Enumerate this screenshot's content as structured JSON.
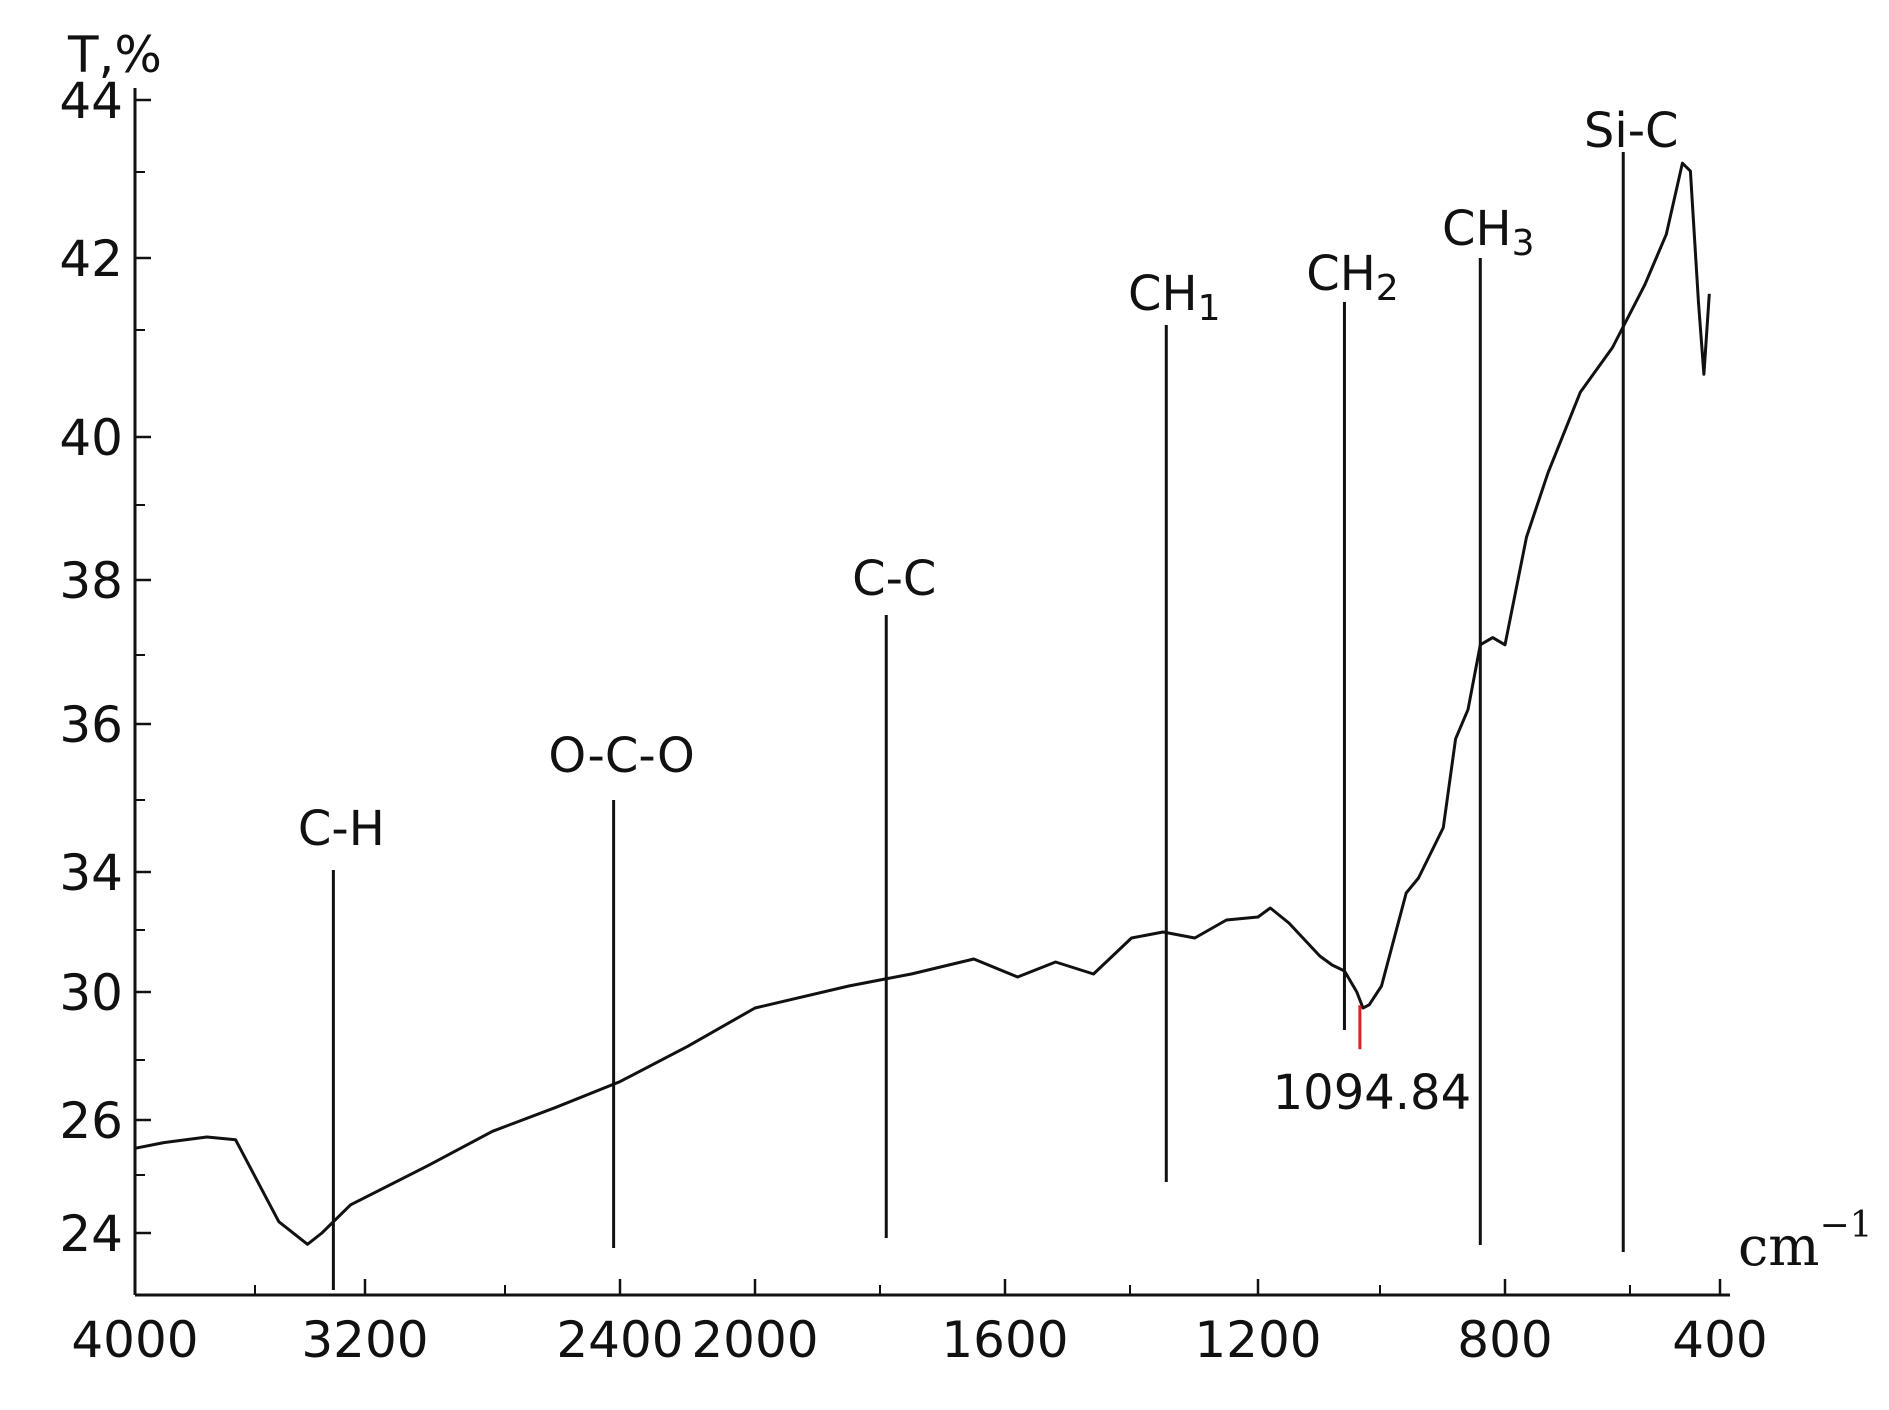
{
  "chart_data": {
    "type": "line",
    "ylabel": "T,%",
    "xlabel": "cm",
    "xlabel_sup": "−1",
    "x_ticks": [
      {
        "value": 4000,
        "label": "4000"
      },
      {
        "value": 3200,
        "label": "3200"
      },
      {
        "value": 2400,
        "label": "2400"
      },
      {
        "value": 2000,
        "label": "2000"
      },
      {
        "value": 1600,
        "label": "1600"
      },
      {
        "value": 1200,
        "label": "1200"
      },
      {
        "value": 800,
        "label": "800"
      },
      {
        "value": 400,
        "label": "400"
      }
    ],
    "y_ticks": [
      {
        "value": 24,
        "label": "24"
      },
      {
        "value": 26,
        "label": "26"
      },
      {
        "value": 30,
        "label": "30"
      },
      {
        "value": 34,
        "label": "34"
      },
      {
        "value": 36,
        "label": "36"
      },
      {
        "value": 38,
        "label": "38"
      },
      {
        "value": 40,
        "label": "40"
      },
      {
        "value": 42,
        "label": "42"
      },
      {
        "value": 44,
        "label": "44"
      }
    ],
    "series": [
      {
        "points": [
          [
            4000,
            25.5
          ],
          [
            3900,
            25.6
          ],
          [
            3750,
            25.7
          ],
          [
            3650,
            25.65
          ],
          [
            3500,
            24.2
          ],
          [
            3400,
            23.8
          ],
          [
            3350,
            24.0
          ],
          [
            3250,
            24.5
          ],
          [
            3000,
            25.2
          ],
          [
            2800,
            25.8
          ],
          [
            2600,
            26.4
          ],
          [
            2400,
            27.2
          ],
          [
            2200,
            28.3
          ],
          [
            2000,
            29.5
          ],
          [
            1850,
            30.2
          ],
          [
            1750,
            30.6
          ],
          [
            1650,
            31.1
          ],
          [
            1580,
            30.5
          ],
          [
            1520,
            31.0
          ],
          [
            1460,
            30.6
          ],
          [
            1400,
            31.8
          ],
          [
            1350,
            32.0
          ],
          [
            1300,
            31.8
          ],
          [
            1250,
            32.4
          ],
          [
            1200,
            32.5
          ],
          [
            1180,
            32.8
          ],
          [
            1150,
            32.3
          ],
          [
            1100,
            31.2
          ],
          [
            1080,
            30.9
          ],
          [
            1060,
            30.7
          ],
          [
            1040,
            30.0
          ],
          [
            1030,
            29.5
          ],
          [
            1020,
            29.6
          ],
          [
            1000,
            30.2
          ],
          [
            960,
            33.3
          ],
          [
            940,
            33.8
          ],
          [
            900,
            34.6
          ],
          [
            880,
            35.8
          ],
          [
            860,
            36.2
          ],
          [
            840,
            37.1
          ],
          [
            820,
            37.2
          ],
          [
            800,
            37.1
          ],
          [
            760,
            38.6
          ],
          [
            720,
            39.5
          ],
          [
            660,
            40.5
          ],
          [
            600,
            41.0
          ],
          [
            540,
            41.7
          ],
          [
            500,
            42.3
          ],
          [
            470,
            43.2
          ],
          [
            455,
            43.1
          ],
          [
            440,
            41.5
          ],
          [
            430,
            40.7
          ],
          [
            420,
            41.6
          ]
        ]
      }
    ],
    "peak_annotation": {
      "value": 1094.84,
      "label": "1094.84",
      "x": 1035,
      "y": 29.4
    },
    "assignment_lines": [
      {
        "label": "C-H",
        "x": 3310
      },
      {
        "label": "O-C-O",
        "x": 2420
      },
      {
        "label": "C-C",
        "x": 1790
      },
      {
        "label": "CH",
        "sub": "1",
        "x": 1345
      },
      {
        "label": "CH",
        "sub": "2",
        "x": 1060
      },
      {
        "label": "CH",
        "sub": "3",
        "x": 840
      },
      {
        "label": "Si-C",
        "x": 580
      }
    ],
    "colors": {
      "line": "#111111",
      "peak_marker": "#e02020"
    }
  }
}
